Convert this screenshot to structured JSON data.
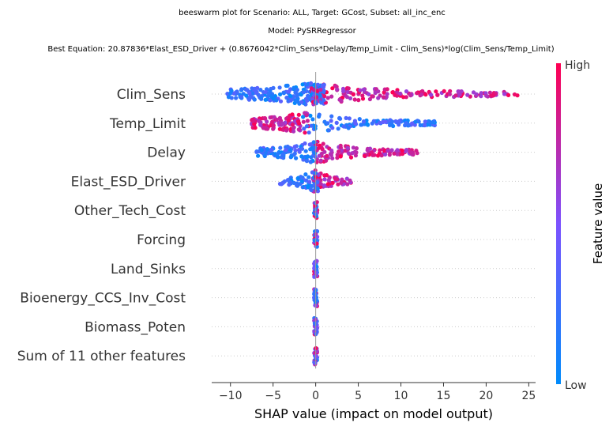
{
  "chart_data": {
    "type": "scatter",
    "subtype": "beeswarm",
    "title_lines": [
      "beeswarm plot for Scenario: ALL, Target: GCost, Subset: all_inc_enc",
      "Model: PySRRegressor",
      "Best Equation: 20.87836*Elast_ESD_Driver + (0.8676042*Clim_Sens*Delay/Temp_Limit - Clim_Sens)*log(Clim_Sens/Temp_Limit)"
    ],
    "xlabel": "SHAP value (impact on model output)",
    "xlim": [
      -12.2,
      25.8
    ],
    "xticks": [
      -10,
      -5,
      0,
      5,
      10,
      15,
      20,
      25
    ],
    "grid": false,
    "colorbar": {
      "label": "Feature value",
      "high_label": "High",
      "low_label": "Low",
      "low_color": "#008bfb",
      "high_color": "#ff0052"
    },
    "features": [
      {
        "name": "Clim_Sens",
        "min": -10.5,
        "max": 24.0,
        "low_min": -10.5,
        "low_max": 1.0,
        "high_min": -0.5,
        "high_max": 24.0,
        "mid": -0.5
      },
      {
        "name": "Temp_Limit",
        "min": -7.5,
        "max": 14.0,
        "low_min": -1.5,
        "low_max": 14.0,
        "high_min": -7.5,
        "high_max": -0.8,
        "mid": -1.2
      },
      {
        "name": "Delay",
        "min": -7.0,
        "max": 12.0,
        "low_min": -7.0,
        "low_max": 0.0,
        "high_min": 0.0,
        "high_max": 12.0,
        "mid": 0.0
      },
      {
        "name": "Elast_ESD_Driver",
        "min": -4.2,
        "max": 4.2,
        "low_min": -4.2,
        "low_max": 0.3,
        "high_min": -0.3,
        "high_max": 4.2,
        "mid": 0.0
      },
      {
        "name": "Other_Tech_Cost",
        "min": 0.0,
        "max": 0.0,
        "low_min": 0,
        "low_max": 0,
        "high_min": 0,
        "high_max": 0,
        "mid": 0
      },
      {
        "name": "Forcing",
        "min": 0.0,
        "max": 0.0,
        "low_min": 0,
        "low_max": 0,
        "high_min": 0,
        "high_max": 0,
        "mid": 0
      },
      {
        "name": "Land_Sinks",
        "min": 0.0,
        "max": 0.0,
        "low_min": 0,
        "low_max": 0,
        "high_min": 0,
        "high_max": 0,
        "mid": 0
      },
      {
        "name": "Bioenergy_CCS_Inv_Cost",
        "min": 0.0,
        "max": 0.0,
        "low_min": 0,
        "low_max": 0,
        "high_min": 0,
        "high_max": 0,
        "mid": 0
      },
      {
        "name": "Biomass_Poten",
        "min": 0.0,
        "max": 0.0,
        "low_min": 0,
        "low_max": 0,
        "high_min": 0,
        "high_max": 0,
        "mid": 0
      },
      {
        "name": "Sum of 11 other features",
        "min": 0.0,
        "max": 0.0,
        "low_min": 0,
        "low_max": 0,
        "high_min": 0,
        "high_max": 0,
        "mid": 0
      }
    ]
  }
}
